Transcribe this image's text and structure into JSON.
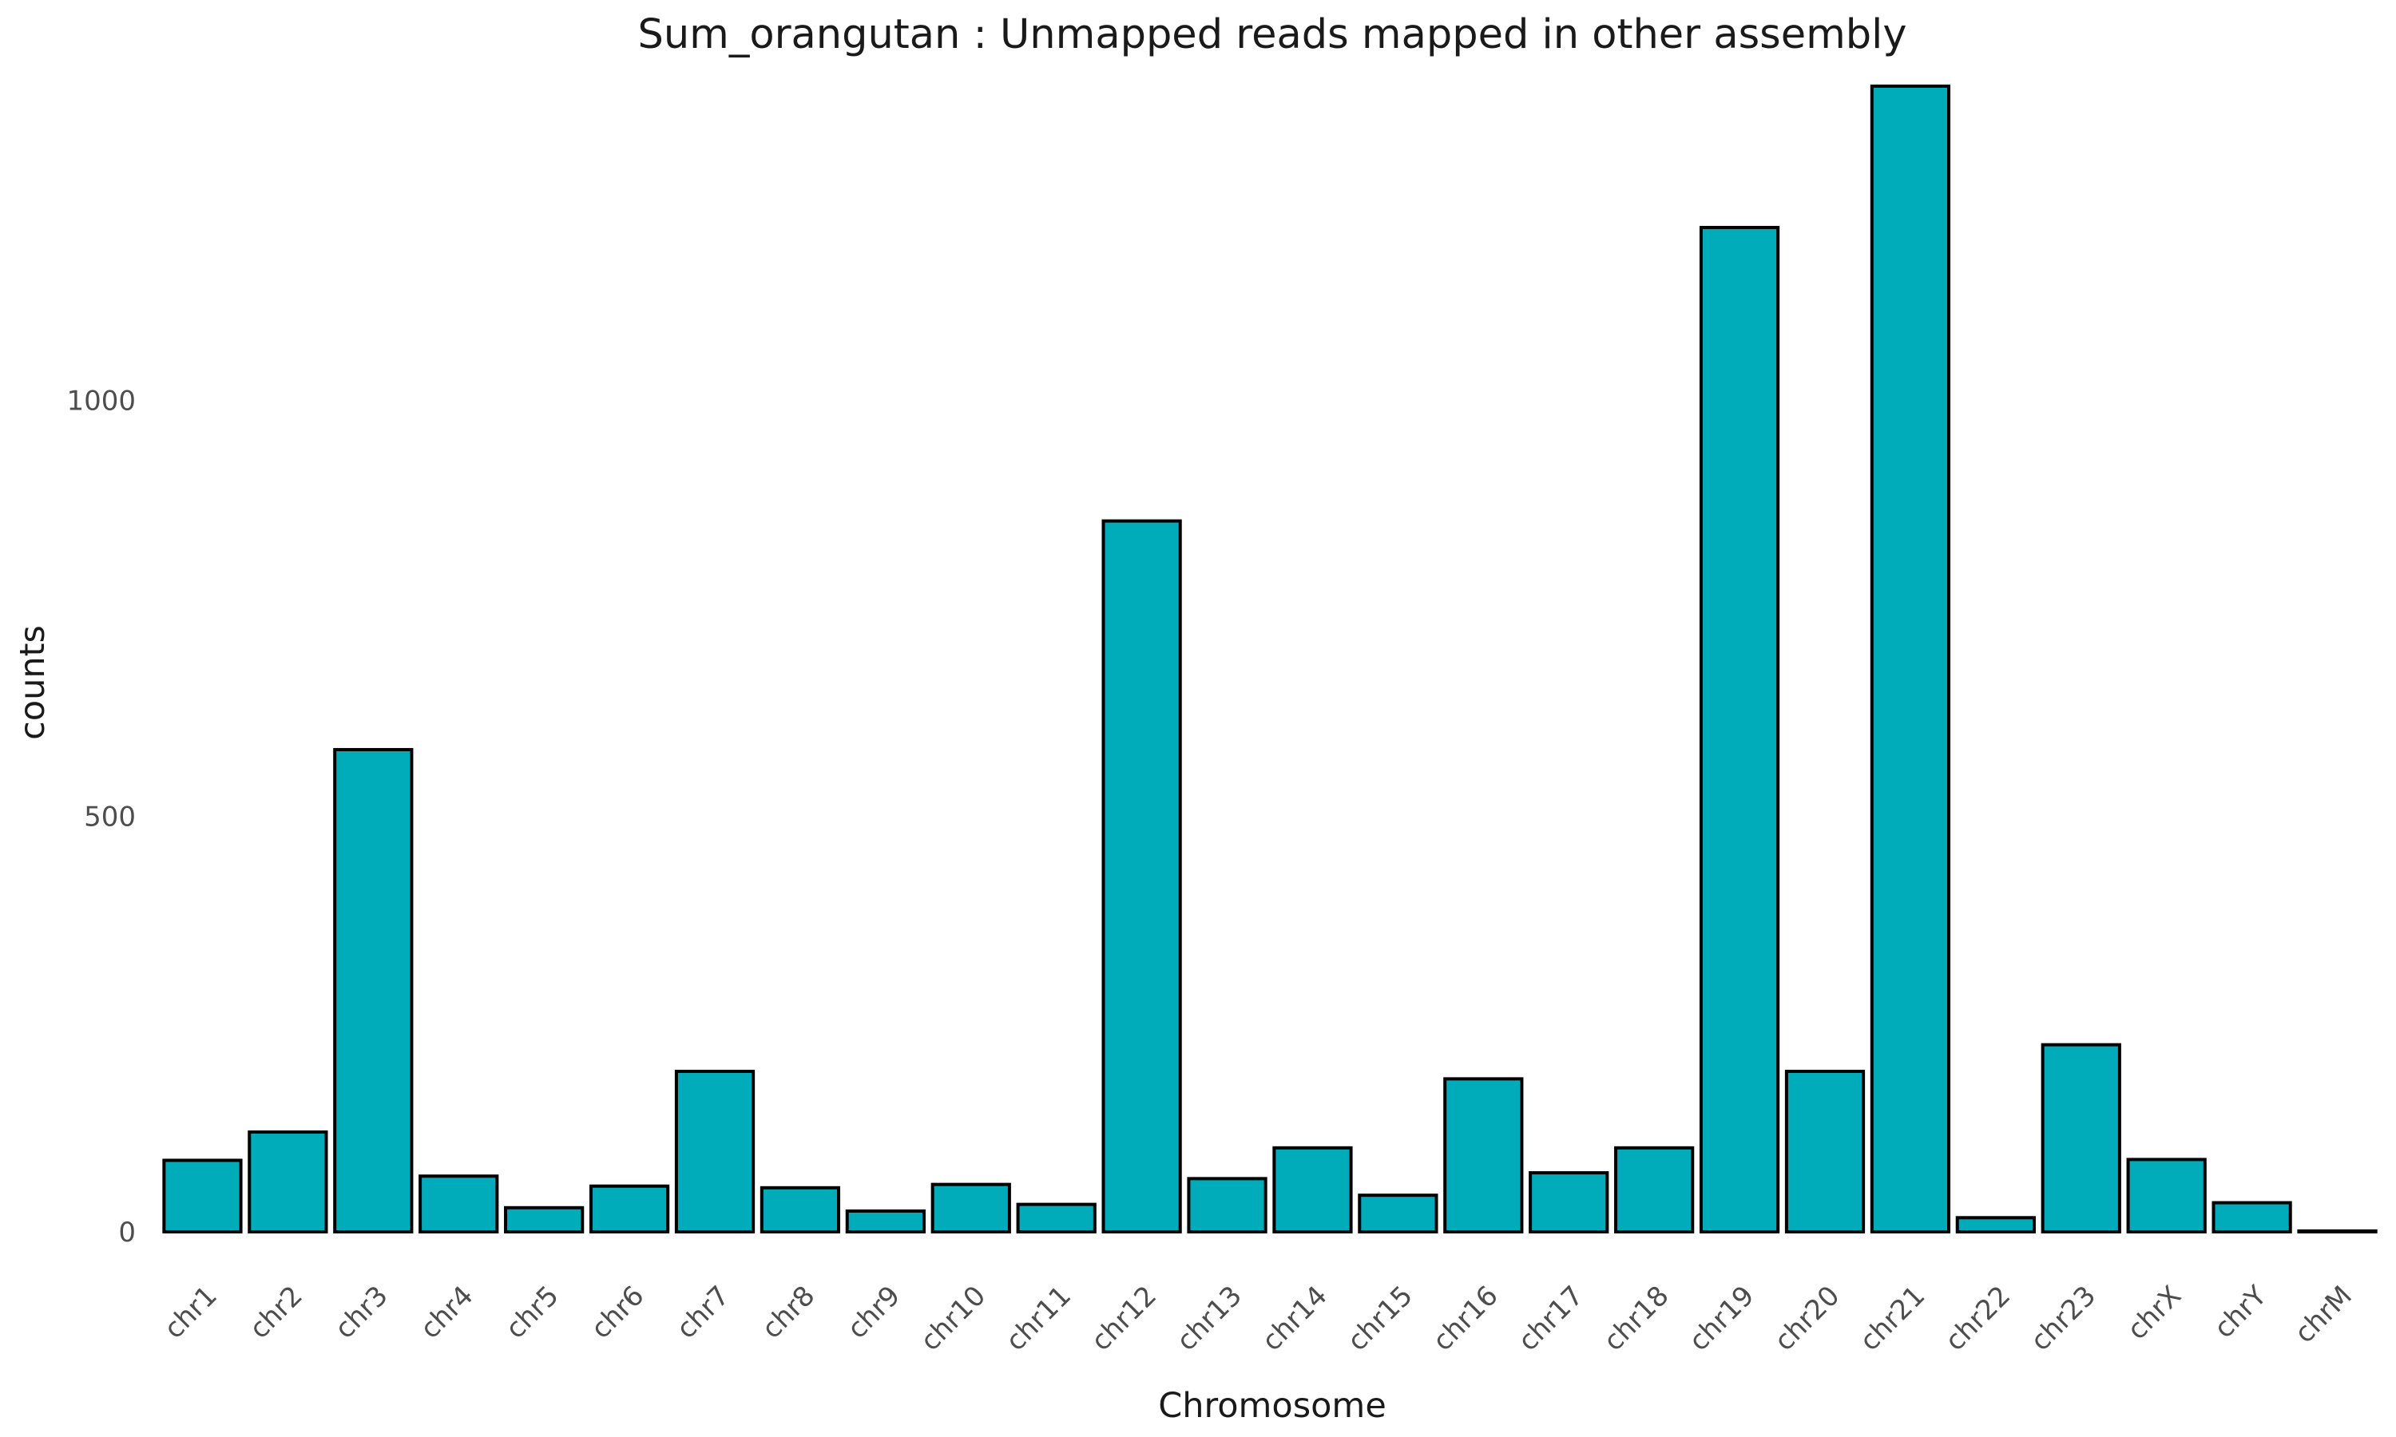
{
  "chart_data": {
    "type": "bar",
    "title": "Sum_orangutan : Unmapped reads mapped in other assembly",
    "xlabel": "Chromosome",
    "ylabel": "counts",
    "categories": [
      "chr1",
      "chr2",
      "chr3",
      "chr4",
      "chr5",
      "chr6",
      "chr7",
      "chr8",
      "chr9",
      "chr10",
      "chr11",
      "chr12",
      "chr13",
      "chr14",
      "chr15",
      "chr16",
      "chr17",
      "chr18",
      "chr19",
      "chr20",
      "chr21",
      "chr22",
      "chr23",
      "chrX",
      "chrY",
      "chrM"
    ],
    "values": [
      86,
      120,
      580,
      67,
      29,
      55,
      193,
      53,
      25,
      57,
      33,
      855,
      64,
      101,
      44,
      184,
      71,
      101,
      1208,
      193,
      1378,
      17,
      225,
      87,
      35,
      1
    ],
    "yticks": [
      0,
      500,
      1000
    ],
    "ylim": [
      0,
      1400
    ],
    "grid": false,
    "legend": "none",
    "colors": {
      "bar_fill": "#00ACBA",
      "bar_stroke": "#000000"
    }
  }
}
